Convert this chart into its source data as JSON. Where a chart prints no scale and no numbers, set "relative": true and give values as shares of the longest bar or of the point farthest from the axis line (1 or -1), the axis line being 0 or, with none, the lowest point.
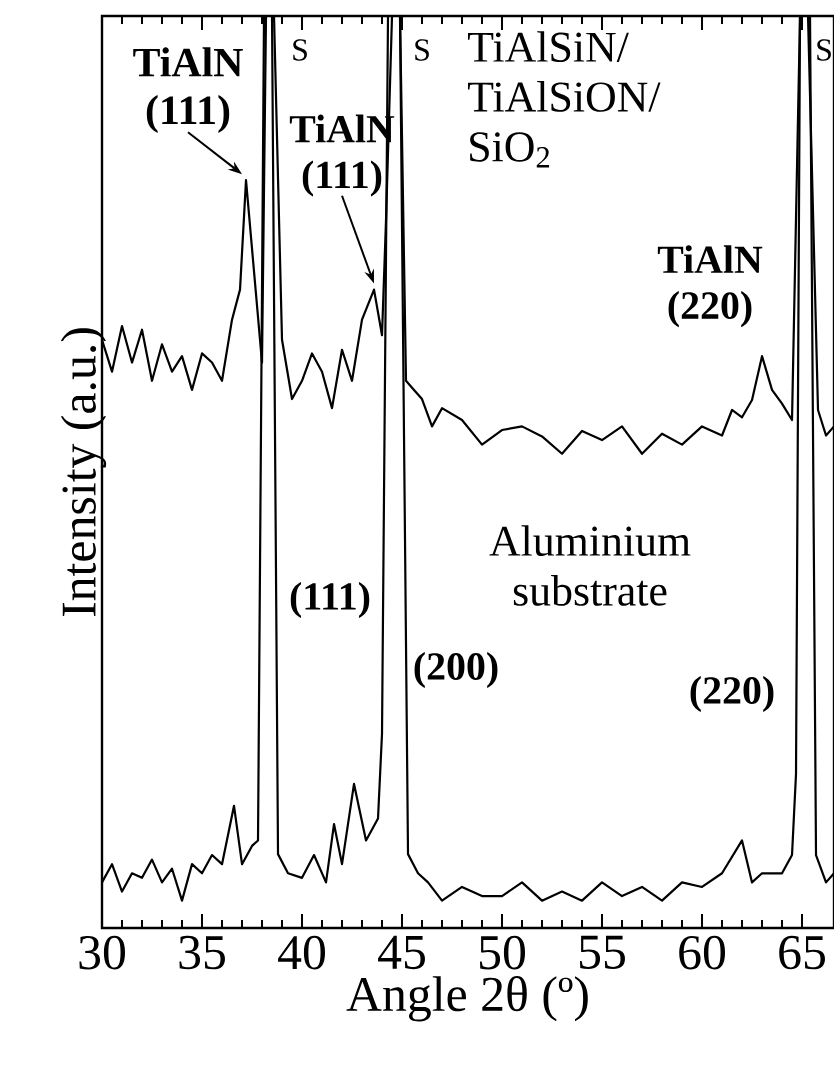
{
  "chart_data": {
    "type": "line",
    "relative": true,
    "xlabel": "Angle 2θ (º)",
    "ylabel": "Intensity (a.u.)",
    "xlim": [
      30,
      66.6
    ],
    "xticks": [
      30,
      35,
      40,
      45,
      50,
      55,
      60,
      65
    ],
    "tick_labels": "x",
    "series": [
      {
        "color": "#000000",
        "x": [
          30,
          30.5,
          31,
          31.5,
          32,
          32.5,
          33,
          33.5,
          34,
          34.5,
          35,
          35.5,
          36,
          36.5,
          36.9,
          37.2,
          37.6,
          38.0,
          38.2,
          38.6,
          39.0,
          39.5,
          40,
          40.5,
          41,
          41.5,
          42,
          42.5,
          43,
          43.6,
          44.0,
          44.2,
          44.5,
          44.9,
          45.2,
          45.6,
          46,
          46.5,
          47,
          48,
          49,
          50,
          51,
          52,
          53,
          54,
          55,
          56,
          57,
          58,
          59,
          60,
          61,
          61.5,
          62,
          62.5,
          63.0,
          63.5,
          64,
          64.5,
          64.9,
          65.3,
          65.8,
          66.2,
          66.6
        ],
        "values": [
          0.645,
          0.61,
          0.66,
          0.62,
          0.656,
          0.6,
          0.64,
          0.61,
          0.627,
          0.59,
          0.63,
          0.62,
          0.6,
          0.667,
          0.7,
          0.82,
          0.72,
          0.62,
          1,
          1,
          0.645,
          0.58,
          0.6,
          0.63,
          0.61,
          0.57,
          0.634,
          0.6,
          0.667,
          0.7,
          0.65,
          0.776,
          1,
          1,
          0.6,
          0.59,
          0.58,
          0.55,
          0.57,
          0.557,
          0.53,
          0.546,
          0.55,
          0.539,
          0.52,
          0.545,
          0.535,
          0.55,
          0.52,
          0.542,
          0.53,
          0.55,
          0.54,
          0.568,
          0.56,
          0.579,
          0.627,
          0.59,
          0.575,
          0.557,
          1,
          1,
          0.568,
          0.54,
          0.55
        ]
      },
      {
        "color": "#000000",
        "x": [
          30,
          30.5,
          31,
          31.5,
          32,
          32.5,
          33,
          33.5,
          34,
          34.5,
          35,
          35.5,
          36,
          36.6,
          37,
          37.5,
          37.8,
          38.1,
          38.5,
          38.8,
          39.3,
          40,
          40.6,
          41.2,
          41.6,
          42,
          42.6,
          43.2,
          43.8,
          44.0,
          44.3,
          44.9,
          45.3,
          45.8,
          46.3,
          47,
          48,
          49,
          50,
          51,
          52,
          53,
          54,
          55,
          56,
          57,
          58,
          59,
          60,
          61,
          62,
          62.5,
          63,
          64,
          64.5,
          64.7,
          64.9,
          65.4,
          65.7,
          66.2,
          66.6
        ],
        "values": [
          0.05,
          0.07,
          0.04,
          0.06,
          0.055,
          0.075,
          0.05,
          0.065,
          0.03,
          0.07,
          0.06,
          0.08,
          0.07,
          0.134,
          0.07,
          0.09,
          0.096,
          1,
          1,
          0.081,
          0.06,
          0.055,
          0.08,
          0.05,
          0.114,
          0.07,
          0.158,
          0.096,
          0.12,
          0.213,
          1,
          1,
          0.081,
          0.06,
          0.05,
          0.03,
          0.045,
          0.035,
          0.035,
          0.05,
          0.03,
          0.04,
          0.03,
          0.05,
          0.035,
          0.045,
          0.03,
          0.05,
          0.045,
          0.06,
          0.096,
          0.05,
          0.06,
          0.06,
          0.08,
          0.169,
          1,
          1,
          0.08,
          0.05,
          0.06
        ]
      }
    ],
    "annotations": [
      {
        "text": "TiAlN (111)",
        "x": 37.2,
        "y": 0.82
      },
      {
        "text": "S",
        "x": 38.4,
        "y": 1
      },
      {
        "text": "TiAlN (111)",
        "x": 43.8,
        "y": 0.7
      },
      {
        "text": "S",
        "x": 44.7,
        "y": 1
      },
      {
        "text": "TiAlN (220)",
        "x": 63,
        "y": 0.627
      },
      {
        "text": "S",
        "x": 65.1,
        "y": 1
      },
      "(111)",
      "(200)",
      "(220)",
      "TiAlSiN/ TiAlSiON/ SiO$_{2}$",
      "Aluminium substrate"
    ]
  }
}
